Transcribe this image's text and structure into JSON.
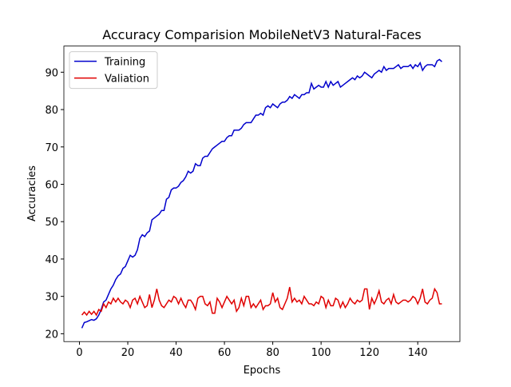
{
  "chart_data": {
    "type": "line",
    "title": "Accuracy Comparision MobileNetV3 Natural-Faces",
    "x_label": "Epochs",
    "y_label": "Accuracies",
    "x": [
      1,
      2,
      3,
      4,
      5,
      6,
      7,
      8,
      9,
      10,
      11,
      12,
      13,
      14,
      15,
      16,
      17,
      18,
      19,
      20,
      21,
      22,
      23,
      24,
      25,
      26,
      27,
      28,
      29,
      30,
      31,
      32,
      33,
      34,
      35,
      36,
      37,
      38,
      39,
      40,
      41,
      42,
      43,
      44,
      45,
      46,
      47,
      48,
      49,
      50,
      51,
      52,
      53,
      54,
      55,
      56,
      57,
      58,
      59,
      60,
      61,
      62,
      63,
      64,
      65,
      66,
      67,
      68,
      69,
      70,
      71,
      72,
      73,
      74,
      75,
      76,
      77,
      78,
      79,
      80,
      81,
      82,
      83,
      84,
      85,
      86,
      87,
      88,
      89,
      90,
      91,
      92,
      93,
      94,
      95,
      96,
      97,
      98,
      99,
      100,
      101,
      102,
      103,
      104,
      105,
      106,
      107,
      108,
      109,
      110,
      111,
      112,
      113,
      114,
      115,
      116,
      117,
      118,
      119,
      120,
      121,
      122,
      123,
      124,
      125,
      126,
      127,
      128,
      129,
      130,
      131,
      132,
      133,
      134,
      135,
      136,
      137,
      138,
      139,
      140,
      141,
      142,
      143,
      144,
      145,
      146,
      147,
      148,
      149,
      150
    ],
    "series": [
      {
        "name": "Training",
        "color": "#0000cc",
        "values": [
          21.5,
          23,
          23.2,
          23.5,
          23.8,
          23.6,
          24,
          25,
          26.5,
          28.5,
          29,
          30.5,
          32,
          33,
          34.5,
          35.5,
          36,
          37.5,
          38,
          39.5,
          41,
          40.5,
          41,
          42.5,
          45.5,
          46.5,
          46,
          47,
          47.5,
          50.5,
          51,
          51.5,
          52,
          53,
          53,
          56,
          56.5,
          58.5,
          59,
          59,
          59.5,
          60.5,
          61,
          62,
          63.5,
          63,
          63.5,
          65.5,
          65,
          65,
          67,
          67.5,
          67.5,
          68.5,
          69.5,
          70,
          70.5,
          71,
          71.5,
          71.5,
          72.5,
          73,
          73,
          74.5,
          74.5,
          74.5,
          75,
          76,
          76.5,
          76.5,
          76.5,
          77.5,
          78.5,
          78.5,
          79,
          78.5,
          80.5,
          81,
          80.5,
          81.5,
          81,
          80.5,
          81.5,
          82,
          82,
          82.5,
          83.5,
          83,
          84,
          83.5,
          83,
          84,
          84,
          84.5,
          84.5,
          87,
          85.5,
          86,
          86.5,
          86,
          86,
          87.5,
          86,
          87.5,
          86.5,
          87,
          87.5,
          86,
          86.5,
          87,
          87.5,
          88,
          88.5,
          88,
          89,
          88.5,
          89,
          90,
          89.5,
          89,
          88.5,
          89.5,
          90,
          90.5,
          90,
          91.5,
          90.5,
          91,
          91,
          91,
          91.5,
          92,
          91,
          91.5,
          91.5,
          91.5,
          92,
          91,
          92,
          91.5,
          92.5,
          90.5,
          91.5,
          92,
          92,
          92,
          91.5,
          93,
          93.4,
          92.8
        ]
      },
      {
        "name": "Valiation",
        "color": "#e00000",
        "values": [
          25,
          25.8,
          25,
          26,
          25.2,
          26,
          25,
          26.5,
          26,
          28,
          27,
          28.5,
          28,
          29.5,
          28.5,
          29.5,
          28.5,
          28,
          29,
          28.5,
          27,
          29,
          29.5,
          28,
          30,
          28.5,
          27,
          27.5,
          30.5,
          27,
          29,
          32,
          29,
          27.5,
          27,
          28,
          29,
          28.5,
          30,
          29.5,
          28,
          29.5,
          28,
          27,
          29,
          29,
          28,
          26.5,
          29.5,
          30,
          30,
          28,
          27.5,
          28.5,
          25.5,
          25.5,
          29.5,
          28.5,
          27,
          28.5,
          30,
          29,
          28,
          29,
          26,
          27,
          29.5,
          27.5,
          30,
          30,
          27,
          28,
          27,
          28,
          29,
          26.5,
          27.5,
          27.5,
          28,
          31,
          28.5,
          29.5,
          27,
          26.5,
          28,
          29.5,
          32.5,
          28.5,
          29.5,
          28.5,
          29,
          28,
          30,
          29,
          28,
          28,
          27.5,
          28.5,
          28,
          30,
          29.5,
          27,
          29,
          27.5,
          27.5,
          29.5,
          29,
          27,
          28.5,
          27,
          28,
          29.5,
          28.5,
          28,
          29,
          28.5,
          29,
          32,
          32,
          26.5,
          29.5,
          28,
          29.5,
          31.5,
          28.5,
          28,
          29,
          29.5,
          28,
          30.5,
          28.5,
          28,
          28.5,
          29,
          29,
          28.5,
          29,
          30,
          29.5,
          28,
          29.5,
          32,
          28.5,
          28,
          29,
          29.5,
          32,
          31,
          28,
          28
        ]
      }
    ],
    "xlim": [
      -6.45,
      157.45
    ],
    "ylim": [
      17.9,
      97.0
    ],
    "xticks": [
      0,
      20,
      40,
      60,
      80,
      100,
      120,
      140
    ],
    "yticks": [
      20,
      30,
      40,
      50,
      60,
      70,
      80,
      90
    ],
    "legend": "upper left"
  }
}
